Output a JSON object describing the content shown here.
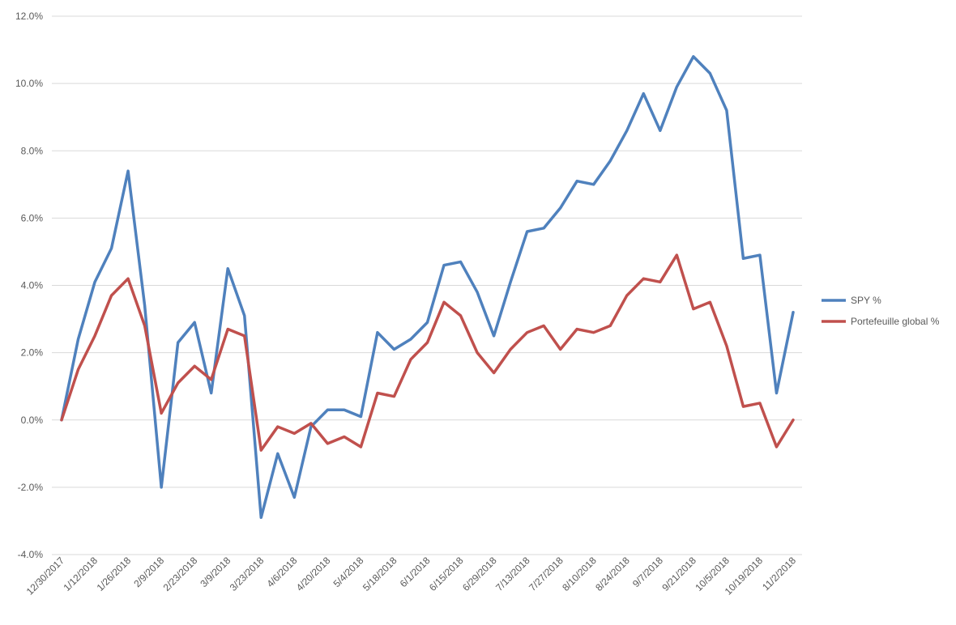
{
  "chart_data": {
    "type": "line",
    "title": "",
    "xlabel": "",
    "ylabel": "",
    "ylim": [
      -0.04,
      0.12
    ],
    "y_ticks": [
      "-4.0%",
      "-2.0%",
      "0.0%",
      "2.0%",
      "4.0%",
      "6.0%",
      "8.0%",
      "10.0%",
      "12.0%"
    ],
    "y_tick_values": [
      -0.04,
      -0.02,
      0.0,
      0.02,
      0.04,
      0.06,
      0.08,
      0.1,
      0.12
    ],
    "grid": true,
    "legend_position": "right",
    "x_tick_labels": [
      "12/30/2017",
      "1/12/2018",
      "1/26/2018",
      "2/9/2018",
      "2/23/2018",
      "3/9/2018",
      "3/23/2018",
      "4/6/2018",
      "4/20/2018",
      "5/4/2018",
      "5/18/2018",
      "6/1/2018",
      "6/15/2018",
      "6/29/2018",
      "7/13/2018",
      "7/27/2018",
      "8/10/2018",
      "8/24/2018",
      "9/7/2018",
      "9/21/2018",
      "10/5/2018",
      "10/19/2018",
      "11/2/2018"
    ],
    "series": [
      {
        "name": "SPY %",
        "color": "#4F81BD",
        "values": [
          0.0,
          0.024,
          0.041,
          0.051,
          0.074,
          0.034,
          -0.02,
          0.023,
          0.029,
          0.008,
          0.045,
          0.031,
          -0.029,
          -0.01,
          -0.023,
          -0.002,
          0.003,
          0.003,
          0.001,
          0.026,
          0.021,
          0.024,
          0.029,
          0.046,
          0.047,
          0.038,
          0.025,
          0.041,
          0.056,
          0.057,
          0.063,
          0.071,
          0.07,
          0.077,
          0.086,
          0.097,
          0.086,
          0.099,
          0.108,
          0.103,
          0.092,
          0.048,
          0.049,
          0.008,
          0.032
        ]
      },
      {
        "name": "Portefeuille global %",
        "color": "#C0504D",
        "values": [
          0.0,
          0.015,
          0.025,
          0.037,
          0.042,
          0.028,
          0.002,
          0.011,
          0.016,
          0.012,
          0.027,
          0.025,
          -0.009,
          -0.002,
          -0.004,
          -0.001,
          -0.007,
          -0.005,
          -0.008,
          0.008,
          0.007,
          0.018,
          0.023,
          0.035,
          0.031,
          0.02,
          0.014,
          0.021,
          0.026,
          0.028,
          0.021,
          0.027,
          0.026,
          0.028,
          0.037,
          0.042,
          0.041,
          0.049,
          0.033,
          0.035,
          0.022,
          0.004,
          0.005,
          -0.008,
          0.0
        ]
      }
    ]
  }
}
